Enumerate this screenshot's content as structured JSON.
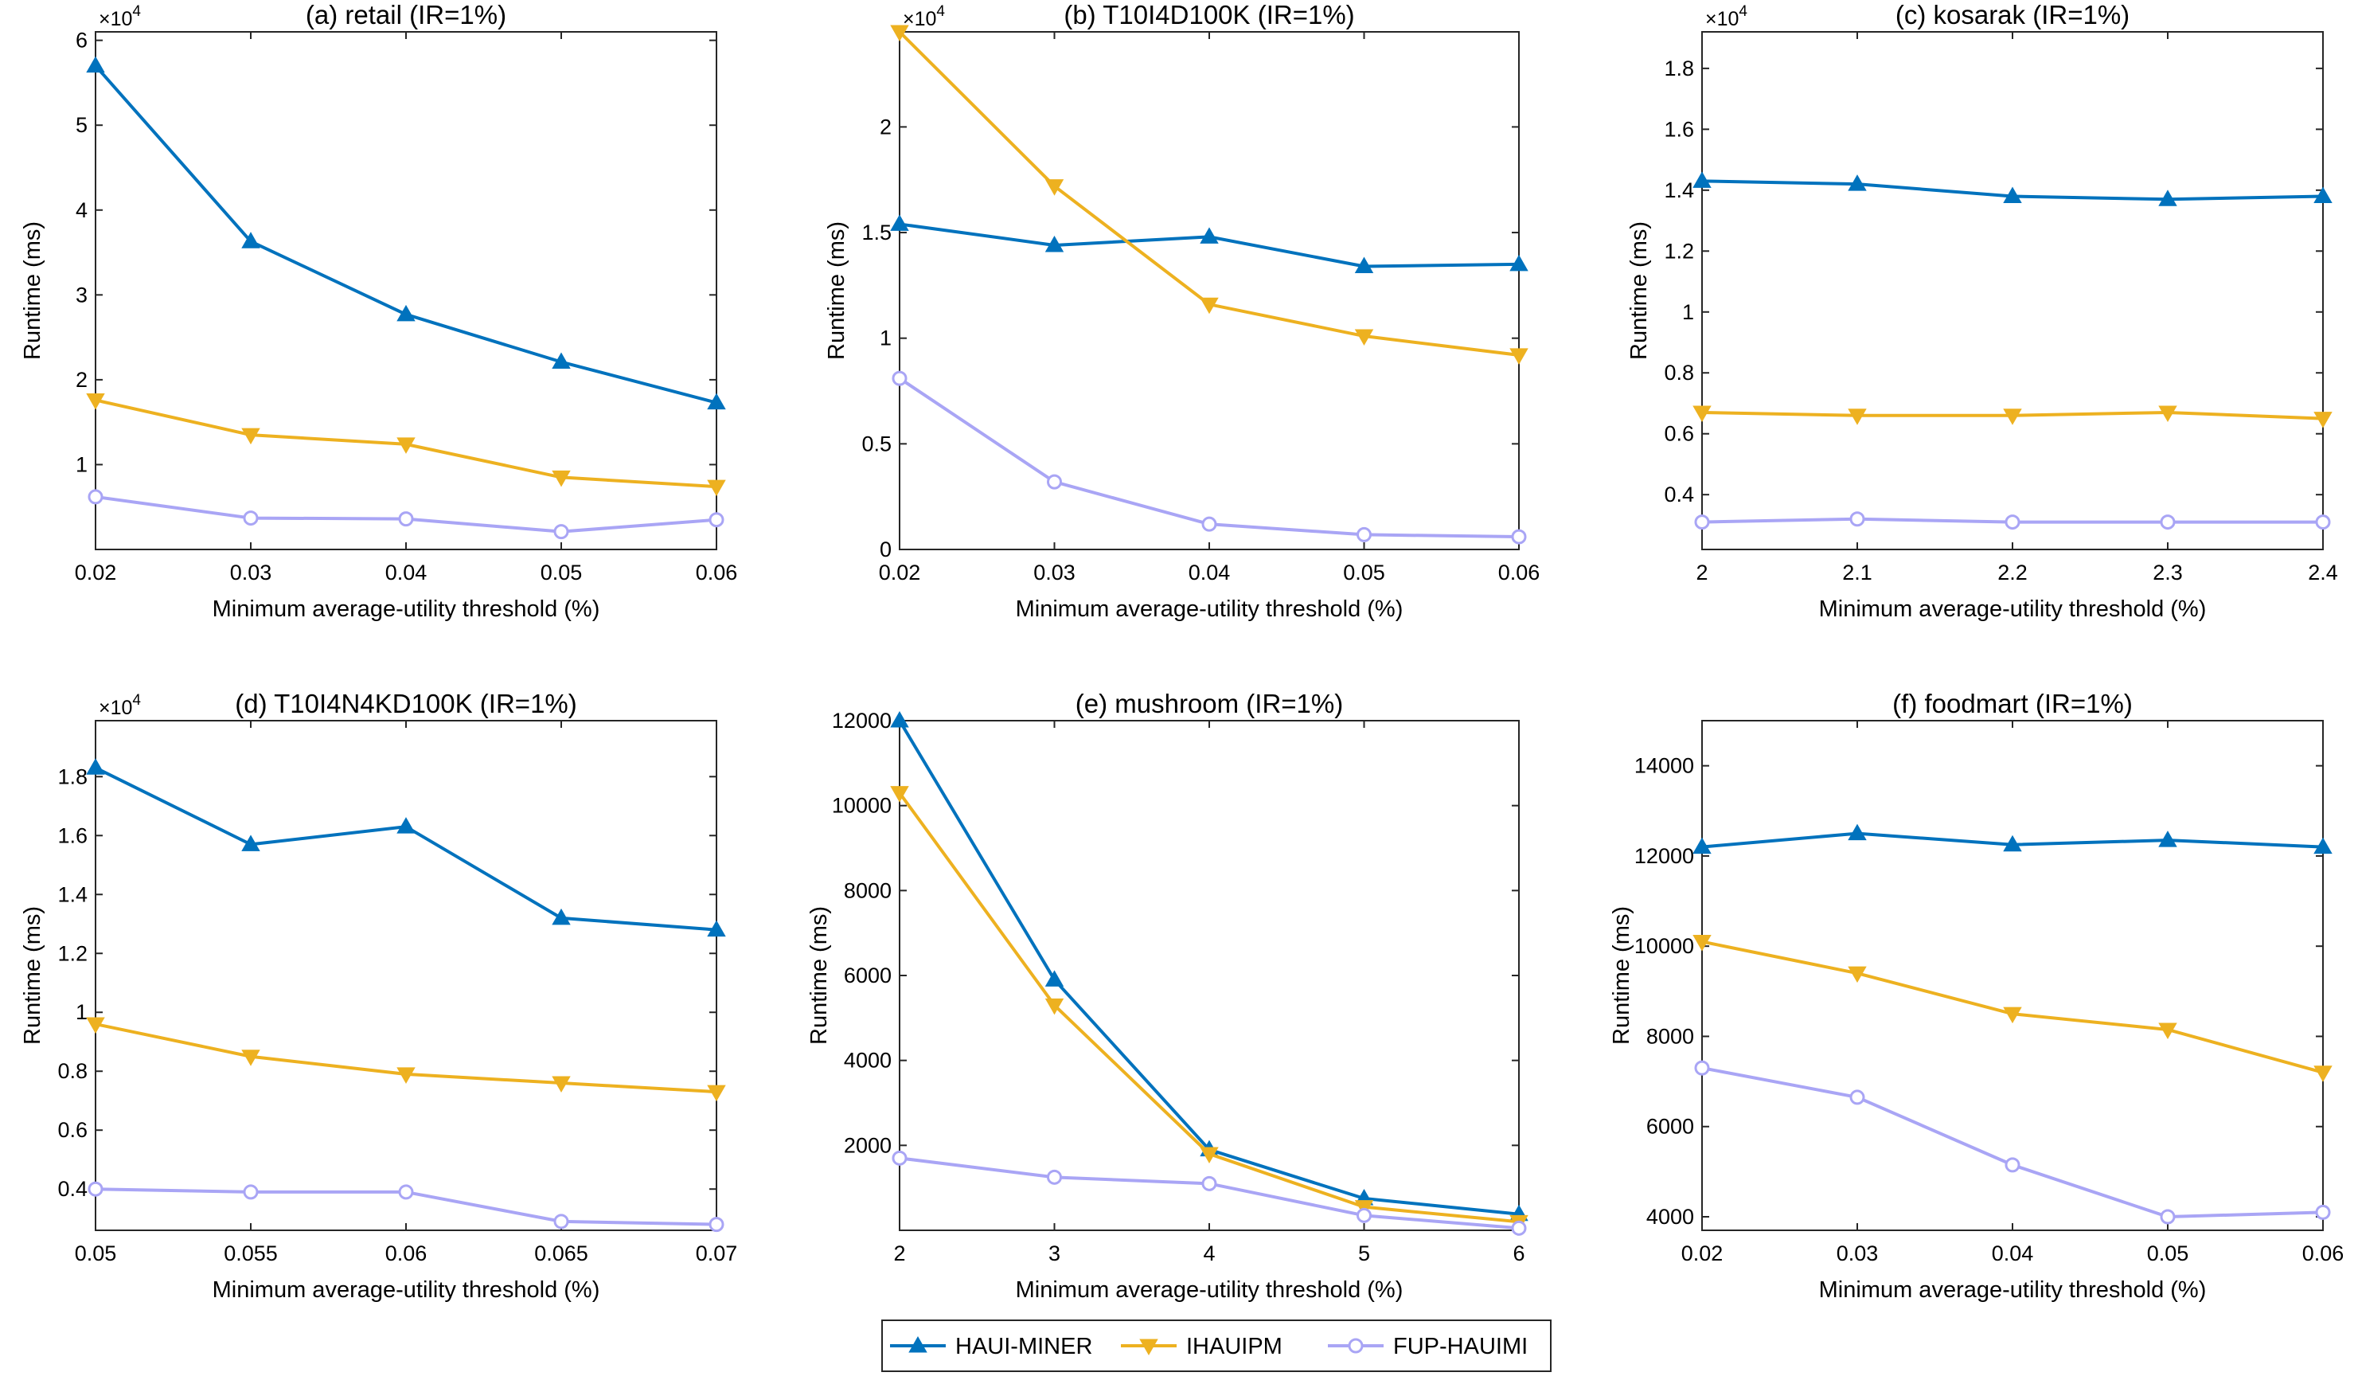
{
  "legend": {
    "items": [
      {
        "name": "HAUI-MINER",
        "color": "#0072BD",
        "marker": "triangle-up"
      },
      {
        "name": "IHAUIPM",
        "color": "#EDB120",
        "marker": "triangle-down"
      },
      {
        "name": "FUP-HAUIMI",
        "color": "#A9A5F5",
        "marker": "circle"
      }
    ]
  },
  "chart_data": [
    {
      "type": "line",
      "title": "(a) retail (IR=1%)",
      "xlabel": "Minimum average-utility threshold (%)",
      "ylabel": "Runtime (ms)",
      "x": [
        0.02,
        0.03,
        0.04,
        0.05,
        0.06
      ],
      "x_ticks": [
        "0.02",
        "0.03",
        "0.04",
        "0.05",
        "0.06"
      ],
      "ylim": [
        0,
        61000
      ],
      "y_ticks": [
        10000,
        20000,
        30000,
        40000,
        50000,
        60000
      ],
      "y_tick_labels": [
        "1",
        "2",
        "3",
        "4",
        "5",
        "6"
      ],
      "y_multiplier": "×10",
      "y_multiplier_exp": "4",
      "series": [
        {
          "name": "HAUI-MINER",
          "values": [
            57000,
            36300,
            27700,
            22100,
            17300
          ]
        },
        {
          "name": "IHAUIPM",
          "values": [
            17600,
            13500,
            12400,
            8500,
            7400
          ]
        },
        {
          "name": "FUP-HAUIMI",
          "values": [
            6200,
            3700,
            3600,
            2100,
            3500
          ]
        }
      ]
    },
    {
      "type": "line",
      "title": "(b) T10I4D100K (IR=1%)",
      "xlabel": "Minimum average-utility threshold (%)",
      "ylabel": "Runtime (ms)",
      "x": [
        0.02,
        0.03,
        0.04,
        0.05,
        0.06
      ],
      "x_ticks": [
        "0.02",
        "0.03",
        "0.04",
        "0.05",
        "0.06"
      ],
      "ylim": [
        0,
        24500
      ],
      "y_ticks": [
        0,
        5000,
        10000,
        15000,
        20000
      ],
      "y_tick_labels": [
        "0",
        "0.5",
        "1",
        "1.5",
        "2"
      ],
      "y_multiplier": "×10",
      "y_multiplier_exp": "4",
      "series": [
        {
          "name": "HAUI-MINER",
          "values": [
            15400,
            14400,
            14800,
            13400,
            13500
          ]
        },
        {
          "name": "IHAUIPM",
          "values": [
            24500,
            17200,
            11600,
            10100,
            9200
          ]
        },
        {
          "name": "FUP-HAUIMI",
          "values": [
            8100,
            3200,
            1200,
            700,
            600
          ]
        }
      ]
    },
    {
      "type": "line",
      "title": "(c) kosarak (IR=1%)",
      "xlabel": "Minimum average-utility threshold (%)",
      "ylabel": "Runtime (ms)",
      "x": [
        2,
        2.1,
        2.2,
        2.3,
        2.4
      ],
      "x_ticks": [
        "2",
        "2.1",
        "2.2",
        "2.3",
        "2.4"
      ],
      "ylim": [
        2200,
        19200
      ],
      "y_ticks": [
        4000,
        6000,
        8000,
        10000,
        12000,
        14000,
        16000,
        18000
      ],
      "y_tick_labels": [
        "0.4",
        "0.6",
        "0.8",
        "1",
        "1.2",
        "1.4",
        "1.6",
        "1.8"
      ],
      "y_multiplier": "×10",
      "y_multiplier_exp": "4",
      "series": [
        {
          "name": "HAUI-MINER",
          "values": [
            14300,
            14200,
            13800,
            13700,
            13800
          ]
        },
        {
          "name": "IHAUIPM",
          "values": [
            6700,
            6600,
            6600,
            6700,
            6500
          ]
        },
        {
          "name": "FUP-HAUIMI",
          "values": [
            3100,
            3200,
            3100,
            3100,
            3100
          ]
        }
      ]
    },
    {
      "type": "line",
      "title": "(d) T10I4N4KD100K (IR=1%)",
      "xlabel": "Minimum average-utility threshold (%)",
      "ylabel": "Runtime (ms)",
      "x": [
        0.05,
        0.055,
        0.06,
        0.065,
        0.07
      ],
      "x_ticks": [
        "0.05",
        "0.055",
        "0.06",
        "0.065",
        "0.07"
      ],
      "ylim": [
        2600,
        19900
      ],
      "y_ticks": [
        4000,
        6000,
        8000,
        10000,
        12000,
        14000,
        16000,
        18000
      ],
      "y_tick_labels": [
        "0.4",
        "0.6",
        "0.8",
        "1",
        "1.2",
        "1.4",
        "1.6",
        "1.8"
      ],
      "y_multiplier": "×10",
      "y_multiplier_exp": "4",
      "series": [
        {
          "name": "HAUI-MINER",
          "values": [
            18300,
            15700,
            16300,
            13200,
            12800
          ]
        },
        {
          "name": "IHAUIPM",
          "values": [
            9600,
            8500,
            7900,
            7600,
            7300
          ]
        },
        {
          "name": "FUP-HAUIMI",
          "values": [
            4000,
            3900,
            3900,
            2900,
            2800
          ]
        }
      ]
    },
    {
      "type": "line",
      "title": "(e) mushroom (IR=1%)",
      "xlabel": "Minimum average-utility threshold (%)",
      "ylabel": "Runtime (ms)",
      "x": [
        2,
        3,
        4,
        5,
        6
      ],
      "x_ticks": [
        "2",
        "3",
        "4",
        "5",
        "6"
      ],
      "ylim": [
        0,
        12000
      ],
      "y_ticks": [
        2000,
        4000,
        6000,
        8000,
        10000,
        12000
      ],
      "y_tick_labels": [
        "2000",
        "4000",
        "6000",
        "8000",
        "10000",
        "12000"
      ],
      "y_multiplier": "",
      "y_multiplier_exp": "",
      "series": [
        {
          "name": "HAUI-MINER",
          "values": [
            12000,
            5900,
            1900,
            750,
            380
          ]
        },
        {
          "name": "IHAUIPM",
          "values": [
            10300,
            5300,
            1800,
            550,
            200
          ]
        },
        {
          "name": "FUP-HAUIMI",
          "values": [
            1700,
            1250,
            1100,
            350,
            50
          ]
        }
      ]
    },
    {
      "type": "line",
      "title": "(f) foodmart (IR=1%)",
      "xlabel": "Minimum average-utility threshold (%)",
      "ylabel": "Runtime (ms)",
      "x": [
        0.02,
        0.03,
        0.04,
        0.05,
        0.06
      ],
      "x_ticks": [
        "0.02",
        "0.03",
        "0.04",
        "0.05",
        "0.06"
      ],
      "ylim": [
        3700,
        15000
      ],
      "y_ticks": [
        4000,
        6000,
        8000,
        10000,
        12000,
        14000
      ],
      "y_tick_labels": [
        "4000",
        "6000",
        "8000",
        "10000",
        "12000",
        "14000"
      ],
      "y_multiplier": "",
      "y_multiplier_exp": "",
      "series": [
        {
          "name": "HAUI-MINER",
          "values": [
            12200,
            12500,
            12250,
            12350,
            12200
          ]
        },
        {
          "name": "IHAUIPM",
          "values": [
            10100,
            9400,
            8500,
            8150,
            7200
          ]
        },
        {
          "name": "FUP-HAUIMI",
          "values": [
            7300,
            6650,
            5150,
            4000,
            4100
          ]
        }
      ]
    }
  ]
}
